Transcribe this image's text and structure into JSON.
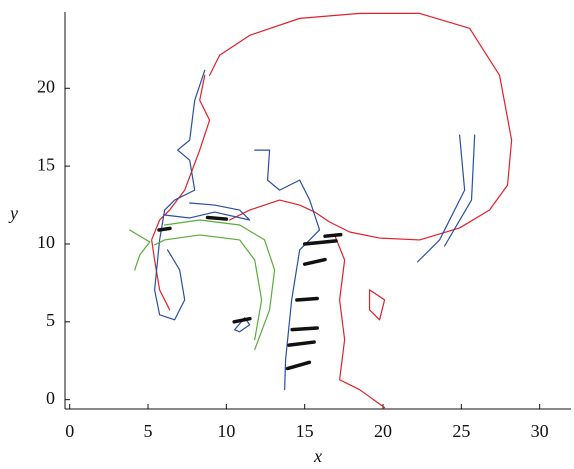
{
  "chart_data": {
    "type": "line",
    "xlabel": "x",
    "ylabel": "y",
    "xlim": [
      -0.3,
      32
    ],
    "ylim": [
      -0.6,
      24.9
    ],
    "xticks": [
      0,
      5,
      10,
      15,
      20,
      25,
      30
    ],
    "yticks": [
      0,
      5,
      10,
      15,
      20
    ],
    "series": [
      {
        "color": "#e0202a",
        "width": 1.2,
        "x": [
          8.93,
          9.57,
          11.49,
          14.68,
          18.51,
          22.34,
          25.53,
          27.44,
          28.21,
          27.95,
          26.8,
          24.89,
          22.34,
          19.78,
          17.87,
          16.59,
          15.64,
          14.68,
          13.4,
          11.49,
          10.21
        ],
        "values": [
          20.83,
          22.12,
          23.4,
          24.49,
          24.81,
          24.81,
          23.85,
          20.83,
          16.67,
          13.78,
          12.18,
          11.03,
          10.26,
          10.38,
          10.77,
          11.41,
          12.05,
          12.5,
          12.82,
          12.18,
          11.54
        ]
      },
      {
        "color": "#e0202a",
        "width": 1.2,
        "x": [
          8.62,
          8.3,
          8.93,
          8.3,
          7.34,
          6.38,
          5.74,
          5.23,
          5.42,
          5.74,
          6.38
        ],
        "values": [
          20.83,
          19.23,
          17.95,
          16.03,
          13.46,
          12.18,
          11.54,
          10.26,
          8.97,
          7.05,
          5.77
        ]
      },
      {
        "color": "#e0202a",
        "width": 1.2,
        "x": [
          16.91,
          17.55,
          17.23,
          17.55,
          17.23,
          18.51,
          20.1
        ],
        "values": [
          10.58,
          8.97,
          6.41,
          3.85,
          1.28,
          0.64,
          -0.51
        ]
      },
      {
        "color": "#e0202a",
        "width": 1.2,
        "x": [
          19.14,
          20.1,
          19.78,
          19.14,
          19.14
        ],
        "values": [
          7.05,
          6.41,
          5.13,
          5.77,
          7.05
        ]
      },
      {
        "color": "#2a4fa0",
        "width": 1.2,
        "x": [
          8.62,
          7.98,
          7.66,
          6.89,
          7.66,
          7.98,
          6.7,
          6.06,
          5.74,
          5.42,
          5.74,
          6.7,
          7.34,
          7.02,
          6.25
        ],
        "values": [
          21.15,
          19.23,
          16.67,
          16.03,
          15.38,
          13.46,
          12.82,
          12.18,
          10.26,
          7.05,
          5.45,
          5.13,
          6.41,
          8.33,
          9.62
        ]
      },
      {
        "color": "#2a4fa0",
        "width": 1.2,
        "x": [
          6.06,
          7.66,
          9.25,
          11.49,
          10.85,
          9.25,
          7.66
        ],
        "values": [
          11.86,
          11.67,
          12.05,
          11.54,
          12.18,
          12.5,
          12.63
        ]
      },
      {
        "color": "#2a4fa0",
        "width": 1.2,
        "x": [
          11.81,
          12.76,
          12.63,
          13.4,
          14.68,
          15.32,
          15.95,
          14.68,
          14.17,
          13.78,
          13.72
        ],
        "values": [
          16.03,
          16.03,
          14.1,
          13.46,
          14.1,
          12.82,
          10.9,
          9.62,
          6.41,
          2.56,
          0.64
        ]
      },
      {
        "color": "#2a4fa0",
        "width": 1.2,
        "x": [
          24.89,
          25.21,
          23.61,
          22.21
        ],
        "values": [
          16.99,
          13.46,
          10.26,
          8.85
        ]
      },
      {
        "color": "#2a4fa0",
        "width": 1.2,
        "x": [
          25.85,
          25.65,
          23.93
        ],
        "values": [
          16.99,
          12.82,
          9.87
        ]
      },
      {
        "color": "#2a4fa0",
        "width": 1.2,
        "x": [
          10.53,
          11.17,
          11.49,
          10.85,
          10.53
        ],
        "values": [
          4.49,
          5.26,
          4.81,
          4.36,
          4.49
        ]
      },
      {
        "color": "#5aac3c",
        "width": 1.2,
        "x": [
          6.06,
          8.3,
          10.85,
          12.44,
          13.08,
          12.76,
          11.81
        ],
        "values": [
          11.22,
          11.54,
          11.22,
          10.26,
          8.33,
          5.77,
          3.21
        ]
      },
      {
        "color": "#5aac3c",
        "width": 1.2,
        "x": [
          5.42,
          6.06,
          8.3,
          10.85,
          11.81,
          12.25,
          11.81
        ],
        "values": [
          9.94,
          10.26,
          10.58,
          10.26,
          8.97,
          6.41,
          3.85
        ]
      },
      {
        "color": "#5aac3c",
        "width": 1.2,
        "x": [
          3.83,
          5.11,
          4.47,
          4.15
        ],
        "values": [
          10.9,
          10.13,
          9.29,
          8.33
        ]
      },
      {
        "color": "#111111",
        "width": 3.5,
        "x": [
          5.7,
          6.4
        ],
        "values": [
          10.9,
          11.0
        ]
      },
      {
        "color": "#111111",
        "width": 3.5,
        "x": [
          8.8,
          10.0
        ],
        "values": [
          11.7,
          11.6
        ]
      },
      {
        "color": "#111111",
        "width": 3.5,
        "x": [
          15.0,
          17.0
        ],
        "values": [
          10.0,
          10.2
        ]
      },
      {
        "color": "#111111",
        "width": 3.5,
        "x": [
          15.0,
          16.3
        ],
        "values": [
          8.7,
          9.0
        ]
      },
      {
        "color": "#111111",
        "width": 3.5,
        "x": [
          14.5,
          15.8
        ],
        "values": [
          6.4,
          6.5
        ]
      },
      {
        "color": "#111111",
        "width": 3.5,
        "x": [
          14.2,
          15.8
        ],
        "values": [
          4.5,
          4.6
        ]
      },
      {
        "color": "#111111",
        "width": 3.5,
        "x": [
          14.0,
          15.6
        ],
        "values": [
          3.5,
          3.7
        ]
      },
      {
        "color": "#111111",
        "width": 3.5,
        "x": [
          13.9,
          15.3
        ],
        "values": [
          2.0,
          2.4
        ]
      },
      {
        "color": "#111111",
        "width": 3.5,
        "x": [
          10.5,
          11.5
        ],
        "values": [
          5.0,
          5.2
        ]
      },
      {
        "color": "#111111",
        "width": 3.5,
        "x": [
          16.3,
          17.3
        ],
        "values": [
          10.5,
          10.6
        ]
      }
    ]
  }
}
